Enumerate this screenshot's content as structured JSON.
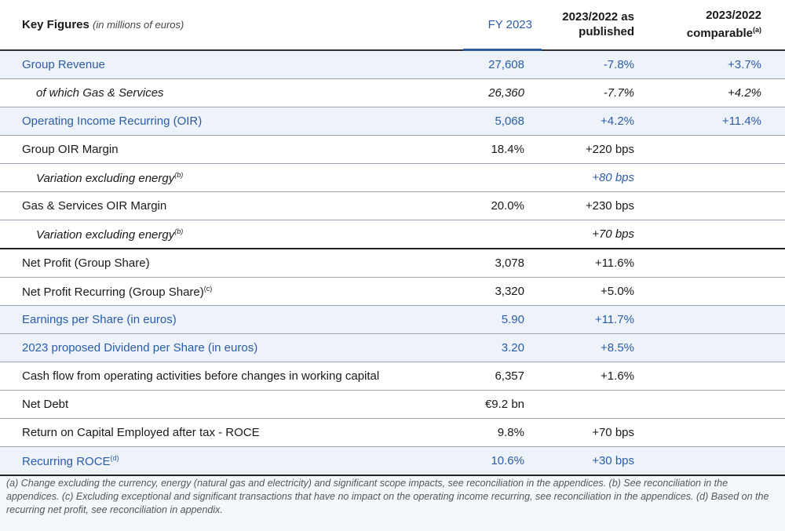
{
  "header": {
    "title": "Key Figures",
    "unit": "(in millions of euros)",
    "fy": "FY 2023",
    "published": "2023/2022 as published",
    "comparable": "2023/2022 comparable",
    "comparable_sup": "(a)"
  },
  "rows": [
    {
      "label": "Group Revenue",
      "fy": "27,608",
      "published": "-7.8%",
      "comparable": "+3.7%"
    },
    {
      "label": "of which Gas & Services",
      "fy": "26,360",
      "published": "-7.7%",
      "comparable": "+4.2%"
    },
    {
      "label": "Operating Income Recurring (OIR)",
      "fy": "5,068",
      "published": "+4.2%",
      "comparable": "+11.4%"
    },
    {
      "label": "Group OIR Margin",
      "fy": "18.4%",
      "published": "+220 bps"
    },
    {
      "label": "Variation excluding energy",
      "sup": "(b)",
      "published": "+80 bps"
    },
    {
      "label": "Gas & Services OIR Margin",
      "fy": "20.0%",
      "published": "+230 bps"
    },
    {
      "label": "Variation excluding energy",
      "sup": "(b)",
      "published": "+70 bps"
    },
    {
      "label": "Net Profit (Group Share)",
      "fy": "3,078",
      "published": "+11.6%"
    },
    {
      "label": "Net Profit Recurring (Group Share)",
      "sup": "(c)",
      "fy": "3,320",
      "published": "+5.0%"
    },
    {
      "label": "Earnings per Share (in euros)",
      "fy": "5.90",
      "published": "+11.7%"
    },
    {
      "label": "2023 proposed Dividend per Share (in euros)",
      "fy": "3.20",
      "published": "+8.5%"
    },
    {
      "label": "Cash flow from operating activities before changes in working capital",
      "fy": "6,357",
      "published": "+1.6%"
    },
    {
      "label": "Net Debt",
      "fy": "€9.2 bn"
    },
    {
      "label": "Return on Capital Employed after tax - ROCE",
      "fy": "9.8%",
      "published": "+70 bps"
    },
    {
      "label": "Recurring ROCE",
      "sup": "(d)",
      "fy": "10.6%",
      "published": "+30 bps"
    }
  ],
  "footnote": "(a) Change excluding the currency, energy (natural gas and electricity) and significant scope impacts, see reconciliation in the appendices. (b) See reconciliation in the appendices. (c) Excluding exceptional and significant transactions that have no impact on the operating income recurring, see reconciliation in the appendices. (d) Based on the recurring net profit, see reconciliation in appendix."
}
